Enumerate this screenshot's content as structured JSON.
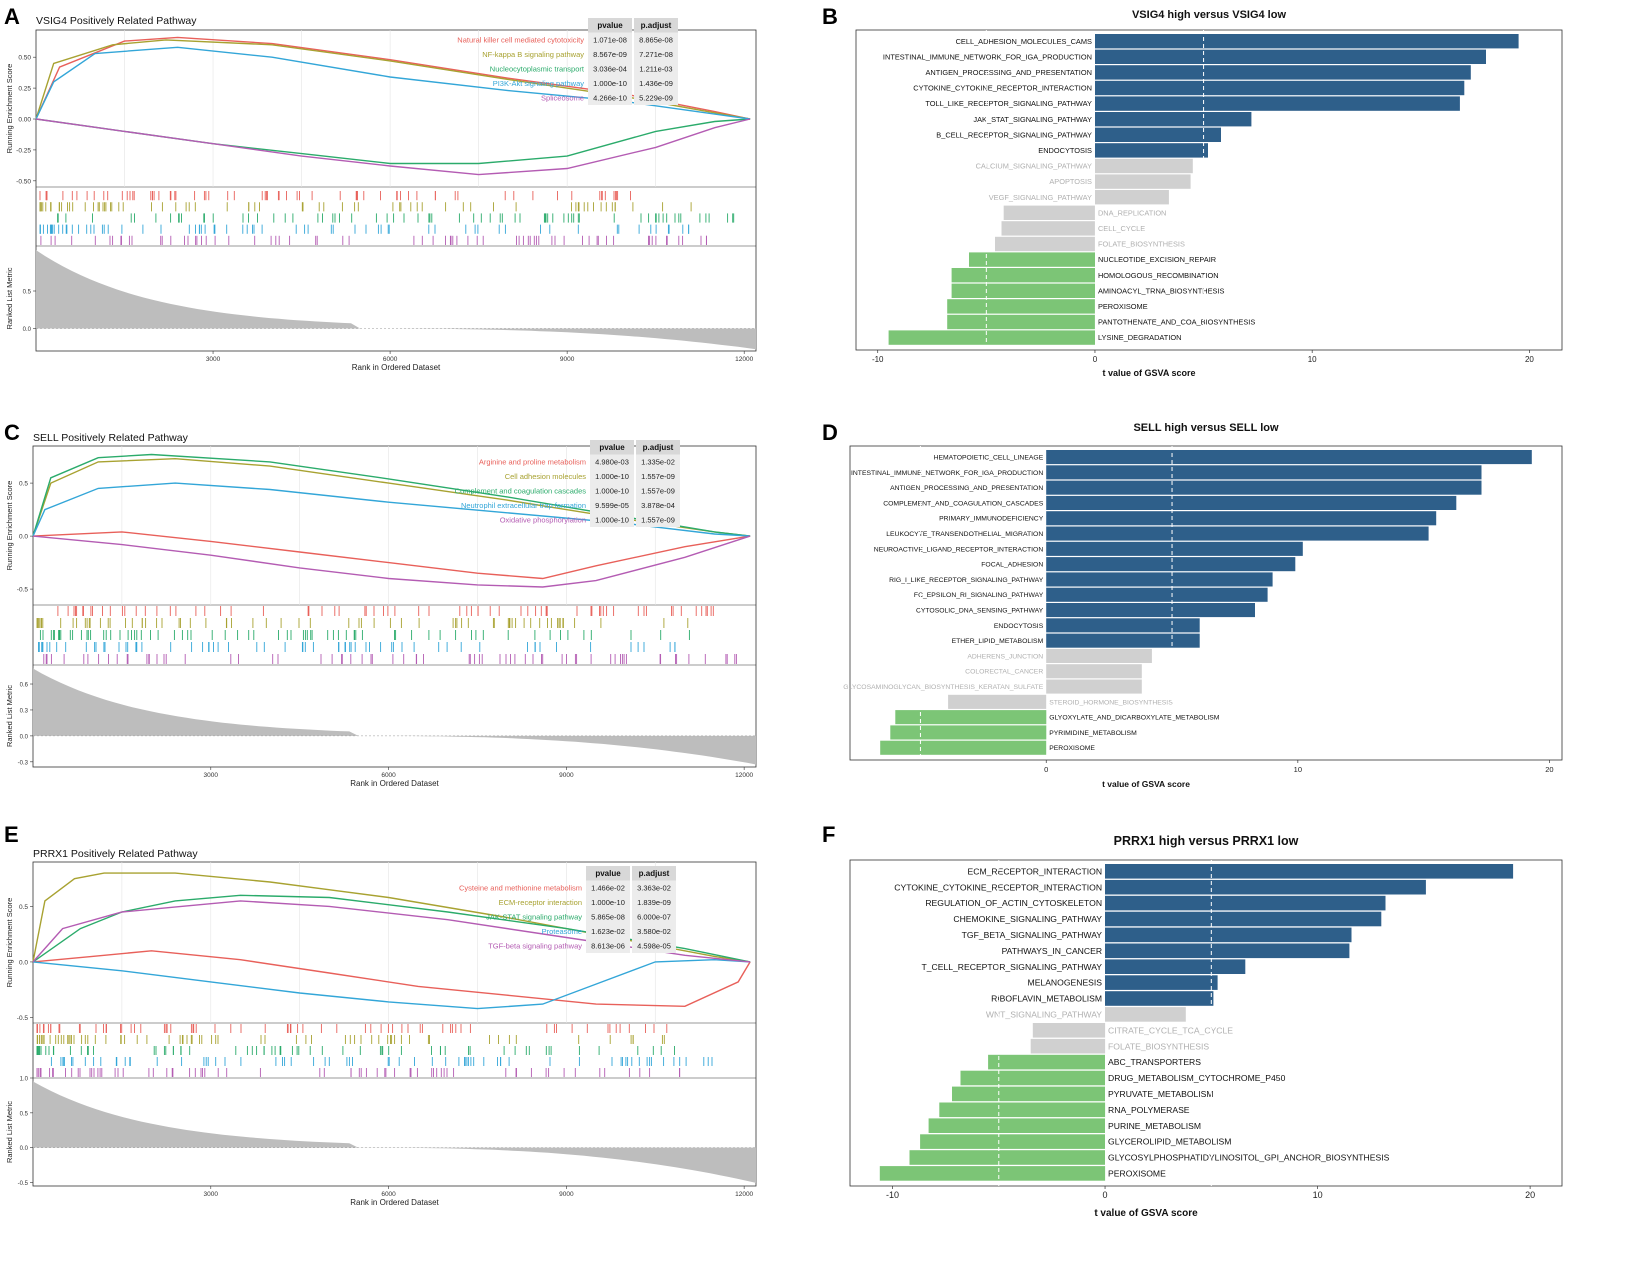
{
  "colors": {
    "up": "#2e5f8a",
    "down": "#7cc576",
    "ns": "#d0d0d0",
    "ns_text": "#b0b0b0",
    "gray_fill": "#bdbdbd",
    "curve_red": "#e8605a",
    "curve_olive": "#a8a231",
    "curve_green": "#2bab6b",
    "curve_blue": "#33a6d8",
    "curve_purple": "#b45cb3"
  },
  "chart_data": [
    {
      "panel": "A",
      "type": "line",
      "title": "VSIG4 Positively Related Pathway",
      "xlabel": "Rank in Ordered Dataset",
      "ylabel": "Running Enrichment Score",
      "xlim": [
        0,
        12200
      ],
      "ylim": [
        -0.55,
        0.72
      ],
      "yticks": [
        "0.50",
        "0.25",
        "0.00",
        "-0.25",
        "-0.50"
      ],
      "ytick_values": [
        0.5,
        0.25,
        0,
        -0.25,
        -0.5
      ],
      "xticks": [
        "3000",
        "6000",
        "9000",
        "12000"
      ],
      "xtick_values": [
        3000,
        6000,
        9000,
        12000
      ],
      "metric_label": "Ranked List Metric",
      "metric_ticks": [
        "0.5",
        "0.0"
      ],
      "metric_tick_values": [
        0.5,
        0
      ],
      "metric_range": [
        -0.3,
        1.1
      ],
      "table_headers": [
        "pvalue",
        "p.adjust"
      ],
      "series": [
        {
          "name": "Natural killer cell mediated cytotoxicity",
          "color": "curve_red",
          "pvalue": "1.071e-08",
          "padjust": "8.865e-08",
          "x": [
            0,
            400,
            1500,
            2400,
            4000,
            6000,
            8000,
            10000,
            11500,
            12100
          ],
          "y": [
            0,
            0.42,
            0.63,
            0.66,
            0.61,
            0.48,
            0.33,
            0.2,
            0.06,
            0
          ]
        },
        {
          "name": "NF-kappa B signaling pathway",
          "color": "curve_olive",
          "pvalue": "8.567e-09",
          "padjust": "7.271e-08",
          "x": [
            0,
            300,
            1300,
            2200,
            4000,
            6000,
            8000,
            10000,
            11500,
            12100
          ],
          "y": [
            0,
            0.45,
            0.6,
            0.64,
            0.6,
            0.47,
            0.32,
            0.18,
            0.05,
            0
          ]
        },
        {
          "name": "Nucleocytoplasmic transport",
          "color": "curve_green",
          "pvalue": "3.036e-04",
          "padjust": "1.211e-03",
          "x": [
            0,
            1500,
            3000,
            4500,
            6000,
            7500,
            9000,
            10500,
            11500,
            12100
          ],
          "y": [
            0,
            -0.1,
            -0.2,
            -0.28,
            -0.36,
            -0.36,
            -0.3,
            -0.1,
            -0.02,
            0
          ]
        },
        {
          "name": "PI3K-Akt signaling pathway",
          "color": "curve_blue",
          "pvalue": "1.000e-10",
          "padjust": "1.436e-09",
          "x": [
            0,
            300,
            1000,
            2400,
            4000,
            6000,
            8000,
            10000,
            11500,
            12100
          ],
          "y": [
            0,
            0.3,
            0.53,
            0.58,
            0.5,
            0.34,
            0.23,
            0.14,
            0.04,
            0
          ]
        },
        {
          "name": "Spliceosome",
          "color": "curve_purple",
          "pvalue": "4.266e-10",
          "padjust": "5.229e-09",
          "x": [
            0,
            1500,
            3000,
            4500,
            6000,
            7500,
            9000,
            10500,
            11500,
            12100
          ],
          "y": [
            0,
            -0.1,
            -0.2,
            -0.3,
            -0.38,
            -0.45,
            -0.4,
            -0.23,
            -0.07,
            0
          ]
        }
      ]
    },
    {
      "panel": "B",
      "type": "bar",
      "title": "VSIG4 high versus VSIG4 low",
      "xlabel": "t value of GSVA score",
      "xlim": [
        -11,
        21.5
      ],
      "xticks": [
        "-10",
        "0",
        "10",
        "20"
      ],
      "xtick_values": [
        -10,
        0,
        10,
        20
      ],
      "threshold": 5,
      "categories": [
        "CELL_ADHESION_MOLECULES_CAMS",
        "INTESTINAL_IMMUNE_NETWORK_FOR_IGA_PRODUCTION",
        "ANTIGEN_PROCESSING_AND_PRESENTATION",
        "CYTOKINE_CYTOKINE_RECEPTOR_INTERACTION",
        "TOLL_LIKE_RECEPTOR_SIGNALING_PATHWAY",
        "JAK_STAT_SIGNALING_PATHWAY",
        "B_CELL_RECEPTOR_SIGNALING_PATHWAY",
        "ENDOCYTOSIS",
        "CALCIUM_SIGNALING_PATHWAY",
        "APOPTOSIS",
        "VEGF_SIGNALING_PATHWAY",
        "DNA_REPLICATION",
        "CELL_CYCLE",
        "FOLATE_BIOSYNTHESIS",
        "NUCLEOTIDE_EXCISION_REPAIR",
        "HOMOLOGOUS_RECOMBINATION",
        "AMINOACYL_TRNA_BIOSYNTHESIS",
        "PEROXISOME",
        "PANTOTHENATE_AND_COA_BIOSYNTHESIS",
        "LYSINE_DEGRADATION"
      ],
      "values": [
        19.5,
        18,
        17.3,
        17,
        16.8,
        7.2,
        5.8,
        5.2,
        4.5,
        4.4,
        3.4,
        -4.2,
        -4.3,
        -4.6,
        -5.8,
        -6.6,
        -6.6,
        -6.8,
        -6.8,
        -9.5
      ]
    },
    {
      "panel": "C",
      "type": "line",
      "title": "SELL Positively Related Pathway",
      "xlabel": "Rank in Ordered Dataset",
      "ylabel": "Running Enrichment Score",
      "xlim": [
        0,
        12200
      ],
      "ylim": [
        -0.65,
        0.85
      ],
      "yticks": [
        "0.5",
        "0.0",
        "-0.5"
      ],
      "ytick_values": [
        0.5,
        0,
        -0.5
      ],
      "xticks": [
        "3000",
        "6000",
        "9000",
        "12000"
      ],
      "xtick_values": [
        3000,
        6000,
        9000,
        12000
      ],
      "metric_label": "Ranked List Metric",
      "metric_ticks": [
        "0.6",
        "0.3",
        "0.0",
        "-0.3"
      ],
      "metric_tick_values": [
        0.6,
        0.3,
        0,
        -0.3
      ],
      "metric_range": [
        -0.36,
        0.82
      ],
      "table_headers": [
        "pvalue",
        "p.adjust"
      ],
      "series": [
        {
          "name": "Arginine and proline metabolism",
          "color": "curve_red",
          "pvalue": "4.980e-03",
          "padjust": "1.335e-02",
          "x": [
            0,
            1500,
            3000,
            4500,
            6000,
            7500,
            8600,
            9500,
            11000,
            12100
          ],
          "y": [
            0,
            0.04,
            -0.05,
            -0.15,
            -0.25,
            -0.35,
            -0.4,
            -0.28,
            -0.1,
            0
          ]
        },
        {
          "name": "Cell adhesion molecules",
          "color": "curve_olive",
          "pvalue": "1.000e-10",
          "padjust": "1.557e-09",
          "x": [
            0,
            300,
            1100,
            2400,
            4000,
            6000,
            8000,
            10000,
            11500,
            12100
          ],
          "y": [
            0,
            0.5,
            0.7,
            0.73,
            0.66,
            0.5,
            0.34,
            0.16,
            0.04,
            0
          ]
        },
        {
          "name": "Complement and coagulation cascades",
          "color": "curve_green",
          "pvalue": "1.000e-10",
          "padjust": "1.557e-09",
          "x": [
            0,
            300,
            1100,
            2000,
            4000,
            6000,
            8000,
            10000,
            11500,
            12100
          ],
          "y": [
            0,
            0.55,
            0.74,
            0.77,
            0.7,
            0.54,
            0.37,
            0.18,
            0.04,
            0
          ]
        },
        {
          "name": "Neutrophil extracellular trap formation",
          "color": "curve_blue",
          "pvalue": "9.599e-05",
          "padjust": "3.878e-04",
          "x": [
            0,
            200,
            1100,
            2400,
            4000,
            6000,
            8000,
            10000,
            11500,
            12100
          ],
          "y": [
            0,
            0.25,
            0.45,
            0.5,
            0.44,
            0.32,
            0.22,
            0.12,
            0.02,
            0
          ]
        },
        {
          "name": "Oxidative phosphorylation",
          "color": "curve_purple",
          "pvalue": "1.000e-10",
          "padjust": "1.557e-09",
          "x": [
            0,
            1500,
            3000,
            4500,
            6000,
            7500,
            8600,
            9500,
            11000,
            12100
          ],
          "y": [
            0,
            -0.08,
            -0.18,
            -0.3,
            -0.4,
            -0.46,
            -0.48,
            -0.42,
            -0.2,
            0
          ]
        }
      ]
    },
    {
      "panel": "D",
      "type": "bar",
      "title": "SELL high versus SELL low",
      "xlabel": "t value of GSVA score",
      "xlim": [
        -7.8,
        20.5
      ],
      "xticks": [
        "0",
        "10",
        "20"
      ],
      "xtick_values": [
        0,
        10,
        20
      ],
      "threshold": 5,
      "categories": [
        "HEMATOPOIETIC_CELL_LINEAGE",
        "INTESTINAL_IMMUNE_NETWORK_FOR_IGA_PRODUCTION",
        "ANTIGEN_PROCESSING_AND_PRESENTATION",
        "COMPLEMENT_AND_COAGULATION_CASCADES",
        "PRIMARY_IMMUNODEFICIENCY",
        "LEUKOCYTE_TRANSENDOTHELIAL_MIGRATION",
        "NEUROACTIVE_LIGAND_RECEPTOR_INTERACTION",
        "FOCAL_ADHESION",
        "RIG_I_LIKE_RECEPTOR_SIGNALING_PATHWAY",
        "FC_EPSILON_RI_SIGNALING_PATHWAY",
        "CYTOSOLIC_DNA_SENSING_PATHWAY",
        "ENDOCYTOSIS",
        "ETHER_LIPID_METABOLISM",
        "ADHERENS_JUNCTION",
        "COLORECTAL_CANCER",
        "GLYCOSAMINOGLYCAN_BIOSYNTHESIS_KERATAN_SULFATE",
        "STEROID_HORMONE_BIOSYNTHESIS",
        "GLYOXYLATE_AND_DICARBOXYLATE_METABOLISM",
        "PYRIMIDINE_METABOLISM",
        "PEROXISOME"
      ],
      "values": [
        19.3,
        17.3,
        17.3,
        16.3,
        15.5,
        15.2,
        10.2,
        9.9,
        9,
        8.8,
        8.3,
        6.1,
        6.1,
        4.2,
        3.8,
        3.8,
        -3.9,
        -6,
        -6.2,
        -6.6
      ]
    },
    {
      "panel": "E",
      "type": "line",
      "title": "PRRX1 Positively Related Pathway",
      "xlabel": "Rank in Ordered Dataset",
      "ylabel": "Running Enrichment Score",
      "xlim": [
        0,
        12200
      ],
      "ylim": [
        -0.55,
        0.9
      ],
      "yticks": [
        "0.5",
        "0.0",
        "-0.5"
      ],
      "ytick_values": [
        0.5,
        0,
        -0.5
      ],
      "xticks": [
        "3000",
        "6000",
        "9000",
        "12000"
      ],
      "xtick_values": [
        3000,
        6000,
        9000,
        12000
      ],
      "metric_label": "Ranked List Metric",
      "metric_ticks": [
        "1.0",
        "0.5",
        "0.0",
        "-0.5"
      ],
      "metric_tick_values": [
        1,
        0.5,
        0,
        -0.5
      ],
      "metric_range": [
        -0.55,
        1.0
      ],
      "table_headers": [
        "pvalue",
        "p.adjust"
      ],
      "series": [
        {
          "name": "Cysteine and methionine metabolism",
          "color": "curve_red",
          "pvalue": "1.466e-02",
          "padjust": "3.363e-02",
          "x": [
            0,
            1000,
            2000,
            3500,
            5000,
            6500,
            8000,
            9500,
            11000,
            11900,
            12100
          ],
          "y": [
            0,
            0.05,
            0.1,
            0.02,
            -0.1,
            -0.22,
            -0.3,
            -0.38,
            -0.4,
            -0.18,
            0
          ]
        },
        {
          "name": "ECM-receptor interaction",
          "color": "curve_olive",
          "pvalue": "1.000e-10",
          "padjust": "1.839e-09",
          "x": [
            0,
            200,
            700,
            1200,
            2400,
            4000,
            6000,
            8000,
            10000,
            11500,
            12100
          ],
          "y": [
            0,
            0.55,
            0.75,
            0.8,
            0.8,
            0.72,
            0.58,
            0.4,
            0.2,
            0.05,
            0
          ]
        },
        {
          "name": "JAK-STAT signaling pathway",
          "color": "curve_green",
          "pvalue": "5.865e-08",
          "padjust": "6.000e-07",
          "x": [
            0,
            800,
            1500,
            2400,
            3500,
            5000,
            7000,
            9000,
            11000,
            12100
          ],
          "y": [
            0,
            0.3,
            0.45,
            0.55,
            0.6,
            0.58,
            0.45,
            0.3,
            0.12,
            0
          ]
        },
        {
          "name": "Proteasome",
          "color": "curve_blue",
          "pvalue": "1.623e-02",
          "padjust": "3.580e-02",
          "x": [
            0,
            1500,
            3000,
            4500,
            6000,
            7500,
            8600,
            9500,
            10500,
            11500,
            12100
          ],
          "y": [
            0,
            -0.08,
            -0.18,
            -0.28,
            -0.36,
            -0.42,
            -0.38,
            -0.2,
            0,
            0.02,
            0
          ]
        },
        {
          "name": "TGF-beta signaling pathway",
          "color": "curve_purple",
          "pvalue": "8.613e-06",
          "padjust": "4.598e-05",
          "x": [
            0,
            500,
            1500,
            2500,
            3500,
            5000,
            7000,
            9000,
            11000,
            12100
          ],
          "y": [
            0,
            0.3,
            0.45,
            0.5,
            0.55,
            0.5,
            0.38,
            0.22,
            0.06,
            0
          ]
        }
      ]
    },
    {
      "panel": "F",
      "type": "bar",
      "title": "PRRX1 high versus PRRX1 low",
      "xlabel": "t value of GSVA score",
      "xlim": [
        -12,
        21.5
      ],
      "xticks": [
        "-10",
        "0",
        "10",
        "20"
      ],
      "xtick_values": [
        -10,
        0,
        10,
        20
      ],
      "threshold": 5,
      "categories": [
        "ECM_RECEPTOR_INTERACTION",
        "CYTOKINE_CYTOKINE_RECEPTOR_INTERACTION",
        "REGULATION_OF_ACTIN_CYTOSKELETON",
        "CHEMOKINE_SIGNALING_PATHWAY",
        "TGF_BETA_SIGNALING_PATHWAY",
        "PATHWAYS_IN_CANCER",
        "T_CELL_RECEPTOR_SIGNALING_PATHWAY",
        "MELANOGENESIS",
        "RIBOFLAVIN_METABOLISM",
        "WNT_SIGNALING_PATHWAY",
        "CITRATE_CYCLE_TCA_CYCLE",
        "FOLATE_BIOSYNTHESIS",
        "ABC_TRANSPORTERS",
        "DRUG_METABOLISM_CYTOCHROME_P450",
        "PYRUVATE_METABOLISM",
        "RNA_POLYMERASE",
        "PURINE_METABOLISM",
        "GLYCEROLIPID_METABOLISM",
        "GLYCOSYLPHOSPHATIDYLINOSITOL_GPI_ANCHOR_BIOSYNTHESIS",
        "PEROXISOME"
      ],
      "values": [
        19.2,
        15.1,
        13.2,
        13,
        11.6,
        11.5,
        6.6,
        5.3,
        5.1,
        3.8,
        -3.4,
        -3.5,
        -5.5,
        -6.8,
        -7.2,
        -7.8,
        -8.3,
        -8.7,
        -9.2,
        -10.6
      ]
    }
  ],
  "panels": [
    {
      "letter": "A"
    },
    {
      "letter": "B"
    },
    {
      "letter": "C"
    },
    {
      "letter": "D"
    },
    {
      "letter": "E"
    },
    {
      "letter": "F"
    }
  ]
}
